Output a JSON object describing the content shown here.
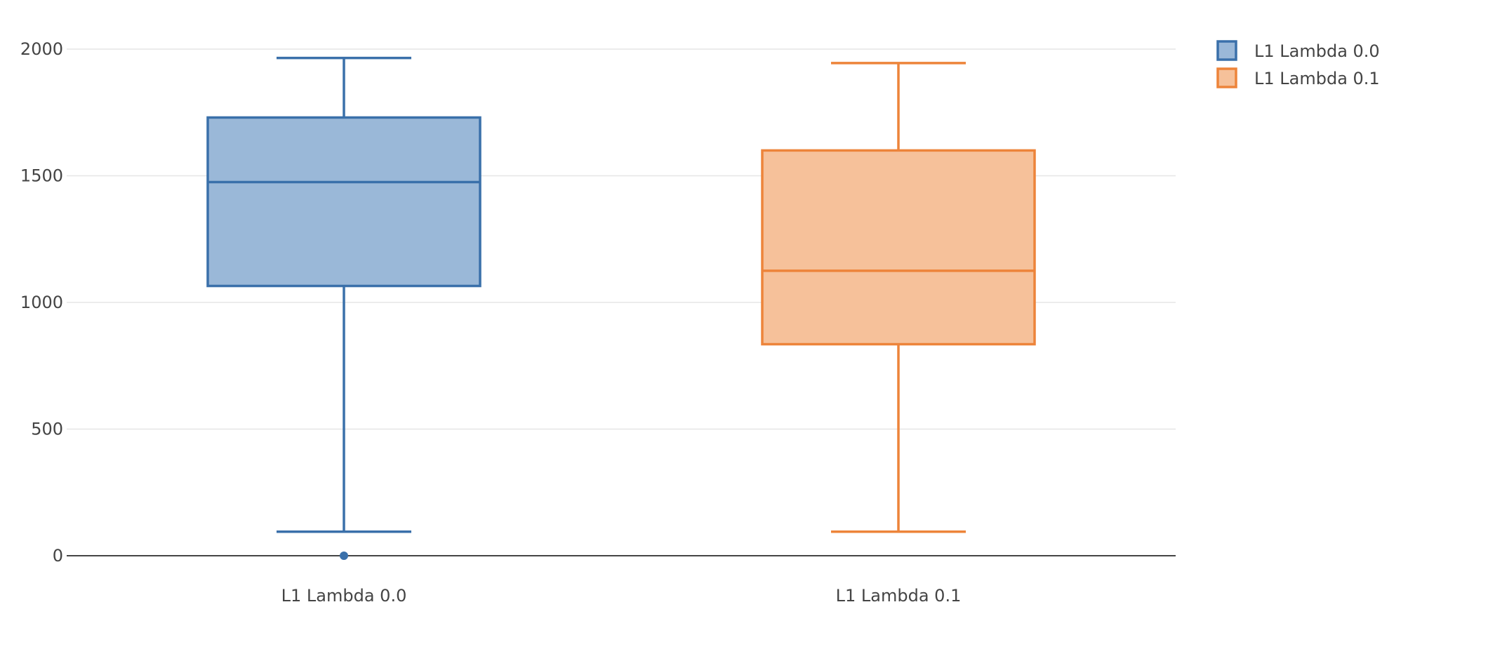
{
  "chart_data": {
    "type": "box",
    "title": "",
    "xlabel": "",
    "ylabel": "",
    "ylim": [
      0,
      2000
    ],
    "yticks": [
      0,
      500,
      1000,
      1500,
      2000
    ],
    "ytick_labels": [
      "0",
      "500",
      "1000",
      "1500",
      "2000"
    ],
    "grid": true,
    "legend_position": "top-right",
    "categories": [
      "L1 Lambda  0.0",
      "L1 Lambda  0.1"
    ],
    "series": [
      {
        "name": "L1 Lambda  0.0",
        "color": "#3a70aa",
        "fill": "#9ab8d8",
        "whisker_low": 95,
        "q1": 1065,
        "median": 1475,
        "q3": 1730,
        "whisker_high": 1965,
        "outliers": [
          0
        ]
      },
      {
        "name": "L1 Lambda  0.1",
        "color": "#ed843a",
        "fill": "#f6c19a",
        "whisker_low": 95,
        "q1": 835,
        "median": 1125,
        "q3": 1600,
        "whisker_high": 1945,
        "outliers": []
      }
    ]
  }
}
